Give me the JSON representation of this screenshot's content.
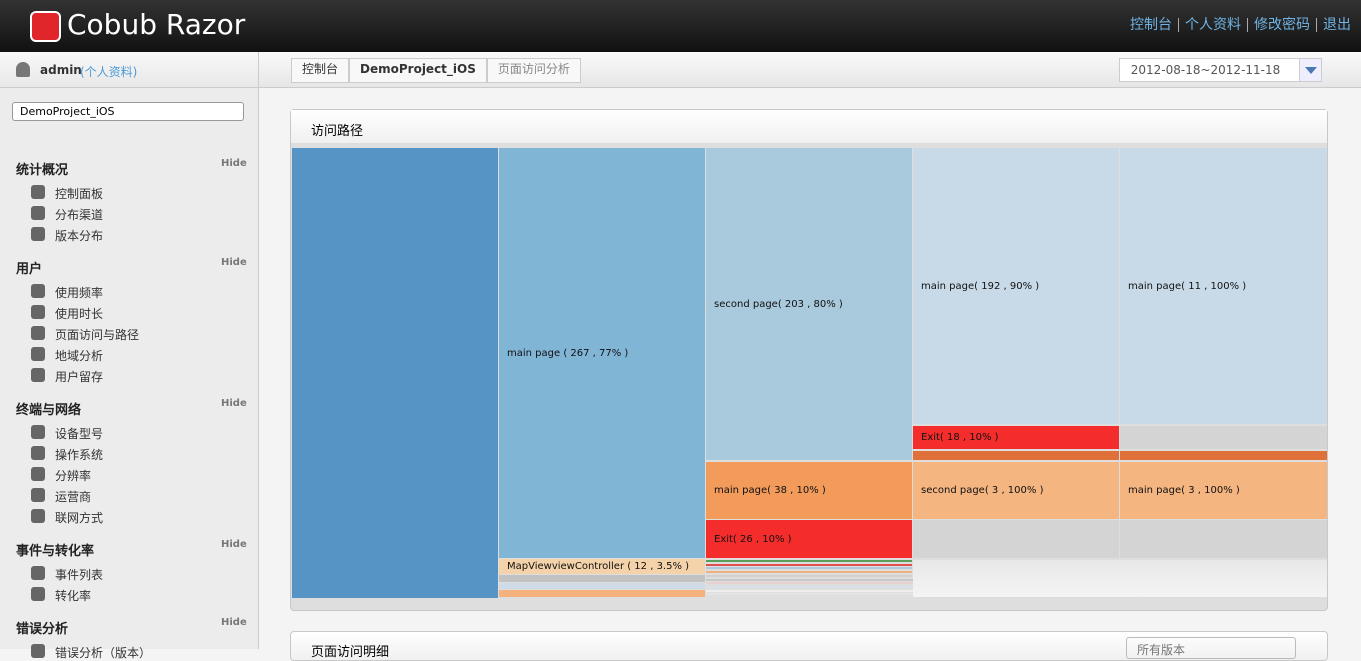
{
  "header": {
    "logo": "Cobub Razor",
    "nav": [
      "控制台",
      "个人资料",
      "修改密码",
      "退出"
    ]
  },
  "sidebar": {
    "user": "admin",
    "profile_link": "(个人资料)",
    "app_select": "DemoProject_iOS",
    "sections": [
      {
        "title": "统计概况",
        "toggle": "Hide",
        "items": [
          "控制面板",
          "分布渠道",
          "版本分布"
        ]
      },
      {
        "title": "用户",
        "toggle": "Hide",
        "items": [
          "使用频率",
          "使用时长",
          "页面访问与路径",
          "地域分析",
          "用户留存"
        ]
      },
      {
        "title": "终端与网络",
        "toggle": "Hide",
        "items": [
          "设备型号",
          "操作系统",
          "分辨率",
          "运营商",
          "联网方式"
        ]
      },
      {
        "title": "事件与转化率",
        "toggle": "Hide",
        "items": [
          "事件列表",
          "转化率"
        ]
      },
      {
        "title": "错误分析",
        "toggle": "Hide",
        "items": [
          "错误分析（版本）"
        ]
      }
    ]
  },
  "breadcrumb": [
    "控制台",
    "DemoProject_iOS",
    "页面访问分析"
  ],
  "date_range": "2012-08-18~2012-11-18",
  "path_panel": {
    "title": "访问路径",
    "nodes": [
      "main page ( 267 , 77% )",
      "second page( 203 , 80% )",
      "main page( 192 , 90% )",
      "main page( 11 , 100% )",
      "Exit( 18 , 10% )",
      "main page( 38 , 10% )",
      "second page( 3 , 100% )",
      "main page( 3 , 100% )",
      "Exit( 26 , 10% )",
      "MapViewviewController ( 12 , 3.5% )"
    ]
  },
  "detail_panel": {
    "title": "页面访问明细",
    "filter": "所有版本"
  }
}
